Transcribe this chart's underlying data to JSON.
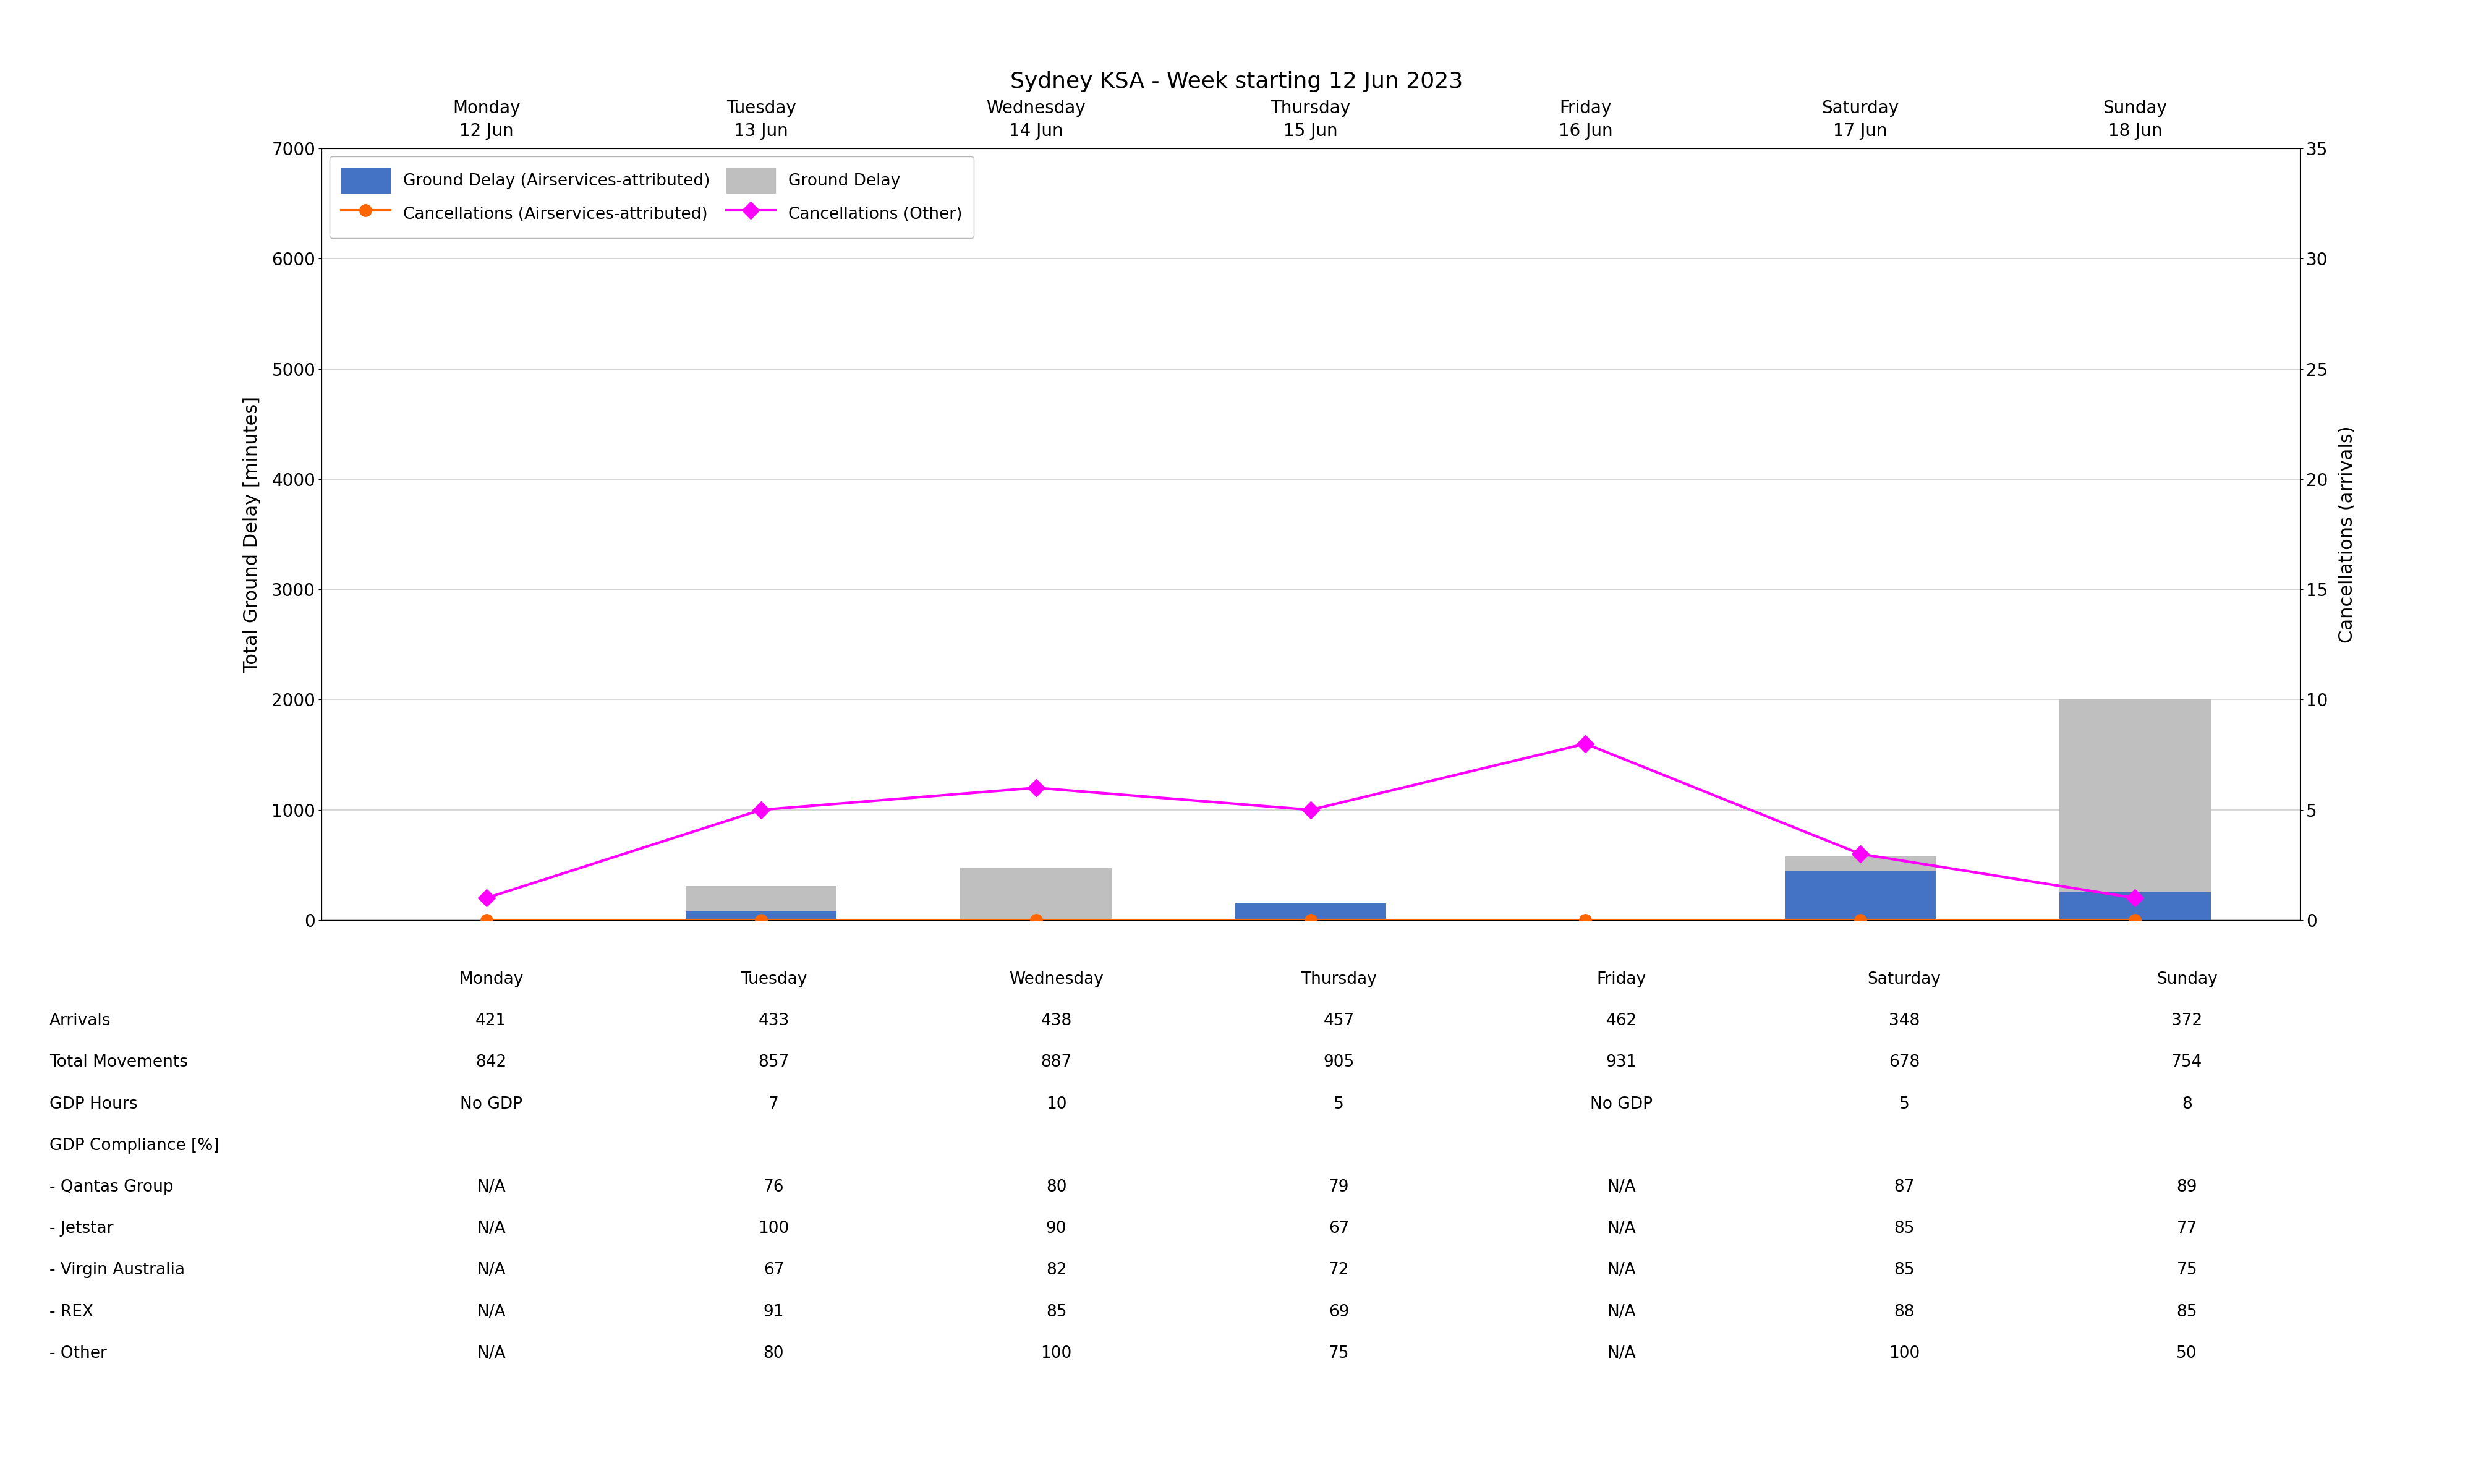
{
  "title": "Sydney KSA - Week starting 12 Jun 2023",
  "days": [
    "Monday\n12 Jun",
    "Tuesday\n13 Jun",
    "Wednesday\n14 Jun",
    "Thursday\n15 Jun",
    "Friday\n16 Jun",
    "Saturday\n17 Jun",
    "Sunday\n18 Jun"
  ],
  "ground_delay_attributed": [
    0,
    80,
    0,
    150,
    0,
    450,
    250
  ],
  "ground_delay_other": [
    0,
    230,
    470,
    0,
    0,
    130,
    1750
  ],
  "cancellations_attributed": [
    0,
    0,
    0,
    0,
    0,
    0,
    0
  ],
  "cancellations_other": [
    1,
    5,
    6,
    5,
    8,
    3,
    1
  ],
  "ylim_left": [
    0,
    7000
  ],
  "ylim_right": [
    0,
    35
  ],
  "yticks_left": [
    0,
    1000,
    2000,
    3000,
    4000,
    5000,
    6000,
    7000
  ],
  "yticks_right": [
    0,
    5,
    10,
    15,
    20,
    25,
    30,
    35
  ],
  "ylabel_left": "Total Ground Delay [minutes]",
  "ylabel_right": "Cancellations (arrivals)",
  "bar_color_attributed": "#4472c4",
  "bar_color_other": "#bfbfbf",
  "line_color_cancellations_attributed": "#ff6600",
  "line_color_cancellations_other": "#ff00ff",
  "legend_labels": [
    "Ground Delay (Airservices-attributed)",
    "Ground Delay",
    "Cancellations (Airservices-attributed)",
    "Cancellations (Other)"
  ],
  "table_rows": [
    "Arrivals",
    "Total Movements",
    "GDP Hours",
    "GDP Compliance [%]",
    "- Qantas Group",
    "- Jetstar",
    "- Virgin Australia",
    "- REX",
    "- Other"
  ],
  "table_data_keys": [
    "Arrivals",
    "Total Movements",
    "GDP Hours",
    "GDP Compliance [%]",
    "- Qantas Group",
    "- Jetstar",
    "- Virgin Australia",
    "- REX",
    "- Other"
  ],
  "table_data": {
    "Arrivals": [
      "421",
      "433",
      "438",
      "457",
      "462",
      "348",
      "372"
    ],
    "Total Movements": [
      "842",
      "857",
      "887",
      "905",
      "931",
      "678",
      "754"
    ],
    "GDP Hours": [
      "No GDP",
      "7",
      "10",
      "5",
      "No GDP",
      "5",
      "8"
    ],
    "GDP Compliance [%]": [
      "",
      "",
      "",
      "",
      "",
      "",
      ""
    ],
    "- Qantas Group": [
      "N/A",
      "76",
      "80",
      "79",
      "N/A",
      "87",
      "89"
    ],
    "- Jetstar": [
      "N/A",
      "100",
      "90",
      "67",
      "N/A",
      "85",
      "77"
    ],
    "- Virgin Australia": [
      "N/A",
      "67",
      "82",
      "72",
      "N/A",
      "85",
      "75"
    ],
    "- REX": [
      "N/A",
      "91",
      "85",
      "69",
      "N/A",
      "88",
      "85"
    ],
    "- Other": [
      "N/A",
      "80",
      "100",
      "75",
      "N/A",
      "100",
      "50"
    ]
  },
  "table_col_headers": [
    "Monday",
    "Tuesday",
    "Wednesday",
    "Thursday",
    "Friday",
    "Saturday",
    "Sunday"
  ],
  "background_color": "#ffffff",
  "grid_color": "#d0d0d0"
}
